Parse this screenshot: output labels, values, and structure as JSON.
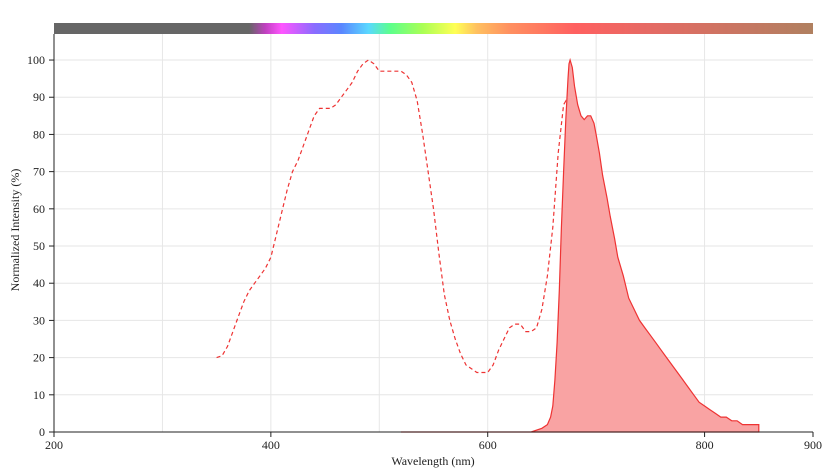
{
  "chart_data": {
    "type": "area",
    "xlabel": "Wavelength (nm)",
    "ylabel": "Normalized Intensity (%)",
    "xlim": [
      200,
      900
    ],
    "ylim": [
      0,
      107
    ],
    "x_ticks": [
      "200",
      "400",
      "600",
      "800",
      "900"
    ],
    "y_ticks": [
      "0",
      "10",
      "20",
      "30",
      "40",
      "50",
      "60",
      "70",
      "80",
      "90",
      "100"
    ],
    "grid": true,
    "legend": "none",
    "spectrum_bar": {
      "stops": [
        {
          "x": 200,
          "color": "#666666"
        },
        {
          "x": 380,
          "color": "#666666"
        },
        {
          "x": 395,
          "color": "#c040c0"
        },
        {
          "x": 410,
          "color": "#ff55ff"
        },
        {
          "x": 440,
          "color": "#8a6cff"
        },
        {
          "x": 465,
          "color": "#5a86ff"
        },
        {
          "x": 490,
          "color": "#5ad8ff"
        },
        {
          "x": 510,
          "color": "#5cff8c"
        },
        {
          "x": 540,
          "color": "#aaff55"
        },
        {
          "x": 570,
          "color": "#ffff55"
        },
        {
          "x": 590,
          "color": "#ffc060"
        },
        {
          "x": 620,
          "color": "#ff9060"
        },
        {
          "x": 680,
          "color": "#ff6060"
        },
        {
          "x": 750,
          "color": "#e56a64"
        },
        {
          "x": 900,
          "color": "#b08060"
        }
      ]
    },
    "series": [
      {
        "style": "dashed",
        "color": "#ee3333",
        "points": [
          [
            350,
            20
          ],
          [
            355,
            20.5
          ],
          [
            360,
            23
          ],
          [
            365,
            27
          ],
          [
            370,
            31
          ],
          [
            375,
            35
          ],
          [
            380,
            38
          ],
          [
            385,
            40
          ],
          [
            390,
            42
          ],
          [
            395,
            44
          ],
          [
            400,
            47
          ],
          [
            405,
            53
          ],
          [
            410,
            59
          ],
          [
            415,
            65
          ],
          [
            420,
            70
          ],
          [
            425,
            73
          ],
          [
            430,
            77
          ],
          [
            435,
            81
          ],
          [
            440,
            85
          ],
          [
            445,
            87
          ],
          [
            450,
            87
          ],
          [
            455,
            87
          ],
          [
            460,
            88
          ],
          [
            465,
            90
          ],
          [
            470,
            92
          ],
          [
            475,
            94
          ],
          [
            480,
            97
          ],
          [
            485,
            99
          ],
          [
            490,
            100
          ],
          [
            495,
            99
          ],
          [
            500,
            97
          ],
          [
            505,
            97
          ],
          [
            510,
            97
          ],
          [
            515,
            97
          ],
          [
            520,
            97
          ],
          [
            525,
            96
          ],
          [
            530,
            94
          ],
          [
            535,
            89
          ],
          [
            540,
            80
          ],
          [
            545,
            70
          ],
          [
            550,
            60
          ],
          [
            555,
            48
          ],
          [
            560,
            37
          ],
          [
            565,
            30
          ],
          [
            570,
            25
          ],
          [
            575,
            21
          ],
          [
            580,
            18
          ],
          [
            585,
            17
          ],
          [
            590,
            16
          ],
          [
            595,
            16
          ],
          [
            600,
            16
          ],
          [
            605,
            18
          ],
          [
            610,
            22
          ],
          [
            615,
            25
          ],
          [
            620,
            28
          ],
          [
            625,
            29
          ],
          [
            630,
            29
          ],
          [
            635,
            27
          ],
          [
            640,
            27
          ],
          [
            645,
            28
          ],
          [
            650,
            33
          ],
          [
            655,
            42
          ],
          [
            660,
            55
          ],
          [
            665,
            75
          ],
          [
            670,
            88
          ],
          [
            672,
            89
          ],
          [
            675,
            85
          ],
          [
            678,
            78
          ],
          [
            680,
            72
          ],
          [
            685,
            60
          ],
          [
            690,
            50
          ],
          [
            695,
            42
          ],
          [
            700,
            34
          ],
          [
            705,
            27
          ],
          [
            710,
            19
          ],
          [
            715,
            8
          ],
          [
            716,
            0
          ]
        ]
      },
      {
        "style": "filled",
        "color": "#ee3333",
        "fill": "#f9a3a3",
        "points": [
          [
            520,
            0
          ],
          [
            640,
            0
          ],
          [
            650,
            1
          ],
          [
            655,
            2
          ],
          [
            658,
            4
          ],
          [
            660,
            7
          ],
          [
            662,
            14
          ],
          [
            664,
            24
          ],
          [
            666,
            38
          ],
          [
            668,
            55
          ],
          [
            670,
            70
          ],
          [
            672,
            84
          ],
          [
            674,
            95
          ],
          [
            675,
            99
          ],
          [
            676,
            100
          ],
          [
            678,
            98
          ],
          [
            680,
            93
          ],
          [
            683,
            88
          ],
          [
            686,
            85
          ],
          [
            689,
            84
          ],
          [
            692,
            85
          ],
          [
            695,
            85
          ],
          [
            698,
            83
          ],
          [
            700,
            80
          ],
          [
            703,
            75
          ],
          [
            706,
            69
          ],
          [
            710,
            63
          ],
          [
            713,
            58
          ],
          [
            717,
            52
          ],
          [
            720,
            47
          ],
          [
            725,
            42
          ],
          [
            730,
            36
          ],
          [
            735,
            33
          ],
          [
            740,
            30
          ],
          [
            745,
            28
          ],
          [
            750,
            26
          ],
          [
            755,
            24
          ],
          [
            760,
            22
          ],
          [
            765,
            20
          ],
          [
            770,
            18
          ],
          [
            775,
            16
          ],
          [
            780,
            14
          ],
          [
            785,
            12
          ],
          [
            790,
            10
          ],
          [
            795,
            8
          ],
          [
            800,
            7
          ],
          [
            805,
            6
          ],
          [
            810,
            5
          ],
          [
            815,
            4
          ],
          [
            820,
            4
          ],
          [
            825,
            3
          ],
          [
            830,
            3
          ],
          [
            835,
            2
          ],
          [
            840,
            2
          ],
          [
            845,
            2
          ],
          [
            850,
            2
          ],
          [
            850,
            0
          ]
        ]
      }
    ]
  }
}
